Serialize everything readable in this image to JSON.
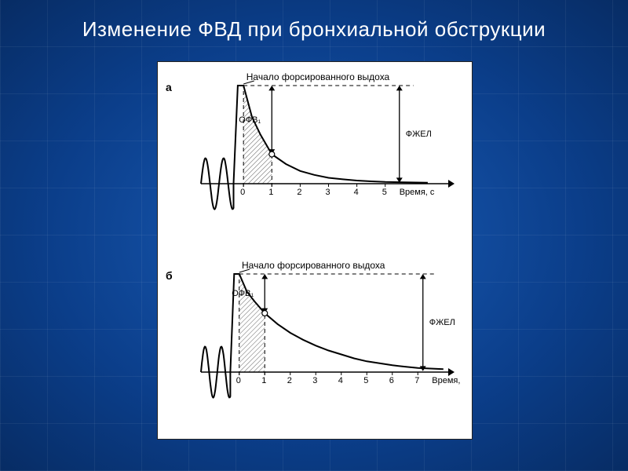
{
  "title": "Изменение ФВД при бронхиальной обструкции",
  "fig": {
    "background": "#ffffff",
    "font": "Arial",
    "title_fontsize": 12,
    "tick_fontsize": 11,
    "line_color": "#000000",
    "hatch_color": "#777777",
    "panels": [
      {
        "id": "a",
        "id_label": "а",
        "exhale_label": "Начало форсированного выдоха",
        "ofv_label": "ОФВ₁",
        "fzhel_label": "ФЖЕЛ",
        "xaxis_label": "Время, с",
        "xticks": [
          0,
          1,
          2,
          3,
          4,
          5
        ],
        "xlim": [
          -1.5,
          7.5
        ],
        "ylim": [
          -40,
          100
        ],
        "tidal_wave": {
          "amp": 26,
          "periods": 1.8,
          "xstart": -1.5,
          "xend": -0.35
        },
        "peak_x": 0.0,
        "peak_y": 100,
        "curve": [
          [
            0.0,
            100
          ],
          [
            0.3,
            68
          ],
          [
            0.6,
            50
          ],
          [
            1.0,
            30
          ],
          [
            1.5,
            20
          ],
          [
            2.0,
            13
          ],
          [
            2.5,
            9
          ],
          [
            3.0,
            6
          ],
          [
            3.5,
            4.5
          ],
          [
            4.0,
            3.2
          ],
          [
            4.5,
            2.4
          ],
          [
            5.0,
            1.8
          ],
          [
            6.5,
            1.0
          ]
        ],
        "ofv_fraction_at_1s": 0.75,
        "fzh_x_arrow": 5.5
      },
      {
        "id": "b",
        "id_label": "б",
        "exhale_label": "Начало форсированного выдоха",
        "ofv_label": "ОФВ₁",
        "fzhel_label": "ФЖЕЛ",
        "xaxis_label": "Время,",
        "xticks": [
          0,
          1,
          2,
          3,
          4,
          5,
          6,
          7
        ],
        "xlim": [
          -1.5,
          8.5
        ],
        "ylim": [
          -40,
          100
        ],
        "tidal_wave": {
          "amp": 26,
          "periods": 1.8,
          "xstart": -1.5,
          "xend": -0.35
        },
        "peak_x": 0.0,
        "peak_y": 100,
        "curve": [
          [
            0.0,
            100
          ],
          [
            0.3,
            82
          ],
          [
            0.6,
            72
          ],
          [
            1.0,
            60
          ],
          [
            1.5,
            49
          ],
          [
            2.0,
            40
          ],
          [
            2.5,
            33
          ],
          [
            3.0,
            27
          ],
          [
            3.5,
            22
          ],
          [
            4.0,
            18
          ],
          [
            4.5,
            14
          ],
          [
            5.0,
            11
          ],
          [
            5.5,
            9
          ],
          [
            6.0,
            7
          ],
          [
            6.5,
            5.5
          ],
          [
            7.0,
            4.2
          ],
          [
            8.0,
            3.0
          ]
        ],
        "ofv_fraction_at_1s": 0.4,
        "fzh_x_arrow": 7.2
      }
    ]
  },
  "style": {
    "curve_width": 2,
    "axis_width": 1.5,
    "dash": "5,4",
    "arrowhead": 5
  }
}
